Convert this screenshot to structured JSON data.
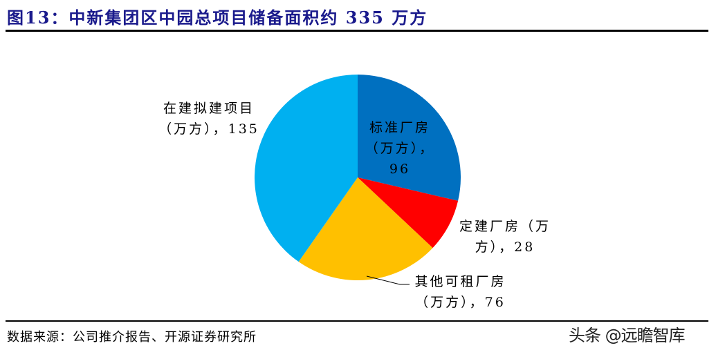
{
  "header": {
    "title": "图13：中新集团区中园总项目储备面积约 335 万方"
  },
  "footer": {
    "source": "数据来源：公司推介报告、开源证券研究所",
    "watermark": "头条 @远瞻智库"
  },
  "labels": {
    "standard_line1": "标准厂房",
    "standard_line2": "（万方），",
    "standard_line3": "96",
    "custom_line1": "定建厂房（万",
    "custom_line2": "方），28",
    "rental_line1": "其他可租厂房",
    "rental_line2": "（万方），76",
    "planned_line1": "在建拟建项目",
    "planned_line2": "（万方），135"
  },
  "chart_data": {
    "type": "pie",
    "title": "图13：中新集团区中园总项目储备面积约 335 万方",
    "unit": "万方",
    "total": 335,
    "start_angle": "12 o'clock, clockwise",
    "categories": [
      "标准厂房",
      "定建厂房",
      "其他可租厂房",
      "在建拟建项目"
    ],
    "values": [
      96,
      28,
      76,
      135
    ],
    "colors": [
      "#0070c0",
      "#ff0000",
      "#ffc000",
      "#00b0f0"
    ],
    "legend": "none (data labels)",
    "source": "数据来源：公司推介报告、开源证券研究所"
  }
}
